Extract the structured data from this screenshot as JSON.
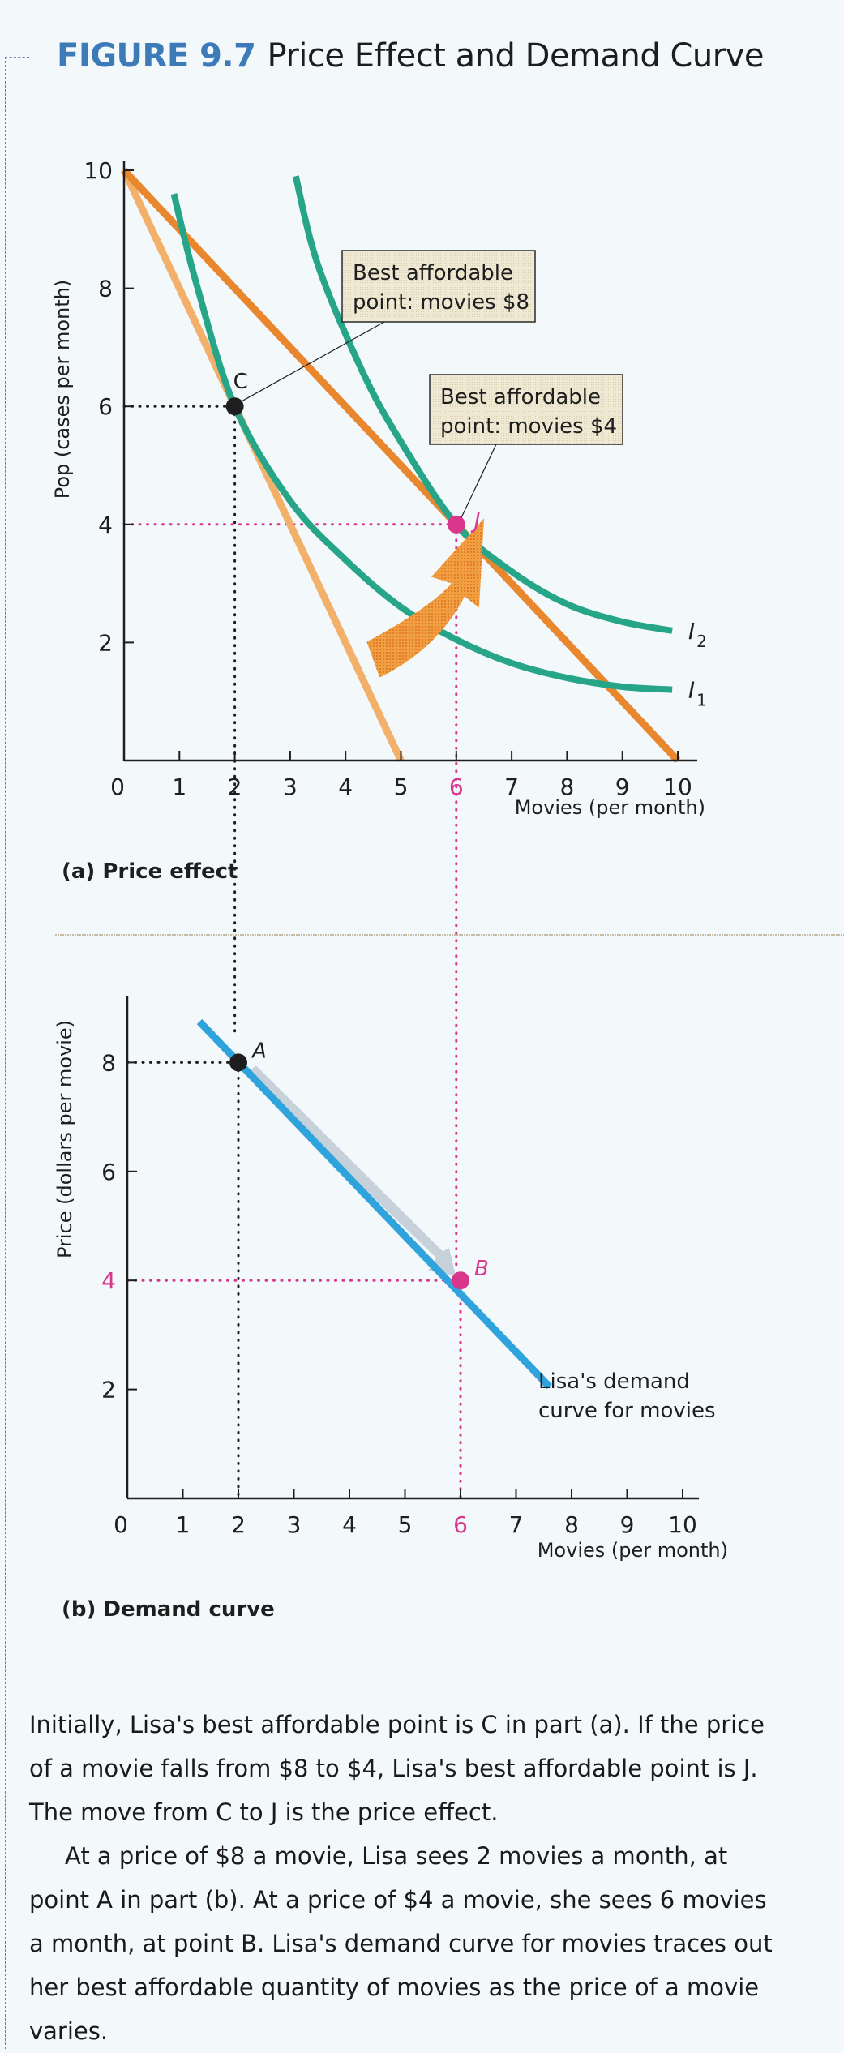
{
  "figure": {
    "number": "FIGURE 9.7",
    "title": "Price Effect and Demand Curve"
  },
  "colors": {
    "title_blue": "#3d7ab8",
    "budget_line_high_price": "#f2b06a",
    "budget_line_low_price": "#e8872e",
    "indifference_curve": "#27a589",
    "highlight_magenta": "#d9368c",
    "demand_curve": "#2fa3db",
    "arrow_orange": "#f0a040",
    "callout_bg": "#ece6cf"
  },
  "chart_data": [
    {
      "id": "price-effect",
      "type": "line",
      "panel_label": "(a)  Price effect",
      "xlabel": "Movies (per month)",
      "ylabel": "Pop (cases per month)",
      "xlim": [
        0,
        10
      ],
      "ylim": [
        0,
        10
      ],
      "x_ticks": [
        "0",
        "1",
        "2",
        "3",
        "4",
        "5",
        "6",
        "7",
        "8",
        "9",
        "10"
      ],
      "y_ticks": [
        "2",
        "4",
        "6",
        "8",
        "10"
      ],
      "highlight_x_tick": "6",
      "grid": false,
      "series": [
        {
          "name": "Budget line (movies $8)",
          "kind": "budget",
          "points": [
            [
              0,
              10
            ],
            [
              5,
              0
            ]
          ]
        },
        {
          "name": "Budget line (movies $4)",
          "kind": "budget",
          "points": [
            [
              0,
              10
            ],
            [
              10,
              0
            ]
          ]
        },
        {
          "name": "I1",
          "kind": "indifference",
          "points": [
            [
              0.9,
              9.6
            ],
            [
              1.3,
              8.1
            ],
            [
              2,
              6
            ],
            [
              3,
              4.4
            ],
            [
              4,
              3.4
            ],
            [
              5,
              2.6
            ],
            [
              6,
              2.05
            ],
            [
              7,
              1.65
            ],
            [
              8,
              1.4
            ],
            [
              9,
              1.25
            ],
            [
              9.9,
              1.2
            ]
          ]
        },
        {
          "name": "I2",
          "kind": "indifference",
          "points": [
            [
              3.1,
              9.9
            ],
            [
              3.5,
              8.4
            ],
            [
              4.3,
              6.6
            ],
            [
              5,
              5.4
            ],
            [
              6,
              4
            ],
            [
              7,
              3.2
            ],
            [
              8,
              2.65
            ],
            [
              9,
              2.35
            ],
            [
              9.9,
              2.2
            ]
          ]
        }
      ],
      "points": [
        {
          "label": "C",
          "x": 2,
          "y": 6,
          "color": "#1e1e1e"
        },
        {
          "label": "J",
          "x": 6,
          "y": 4,
          "color": "#d9368c"
        }
      ],
      "curve_labels": [
        {
          "text": "I",
          "sub": "2",
          "x": 10.1,
          "y": 2.2
        },
        {
          "text": "I",
          "sub": "1",
          "x": 10.1,
          "y": 1.2
        }
      ],
      "annotations": [
        {
          "line1": "Best affordable",
          "line2": "point: movies $8",
          "target": "C"
        },
        {
          "line1": "Best affordable",
          "line2": "point: movies $4",
          "target": "J"
        }
      ],
      "arrow": {
        "from": [
          4.5,
          1.9
        ],
        "to": [
          6.5,
          4.1
        ],
        "meaning": "price effect C to J"
      }
    },
    {
      "id": "demand-curve",
      "type": "line",
      "panel_label": "(b)  Demand curve",
      "xlabel": "Movies (per month)",
      "ylabel": "Price (dollars per movie)",
      "xlim": [
        0,
        10
      ],
      "ylim": [
        0,
        9
      ],
      "x_ticks": [
        "0",
        "1",
        "2",
        "3",
        "4",
        "5",
        "6",
        "7",
        "8",
        "9",
        "10"
      ],
      "y_ticks": [
        "2",
        "4",
        "6",
        "8"
      ],
      "highlight_x_tick": "6",
      "highlight_y_tick": "4",
      "grid": false,
      "series": [
        {
          "name": "Lisa's demand curve for movies",
          "kind": "demand",
          "points": [
            [
              1.3,
              8.75
            ],
            [
              7.6,
              2.05
            ]
          ]
        }
      ],
      "points": [
        {
          "label": "A",
          "x": 2,
          "y": 8,
          "color": "#1e1e1e"
        },
        {
          "label": "B",
          "x": 6,
          "y": 4,
          "color": "#d9368c"
        }
      ],
      "curve_label": {
        "line1": "Lisa's demand",
        "line2": "curve for movies"
      }
    }
  ],
  "caption": {
    "paragraph1": "Initially, Lisa's best affordable point is C in part (a). If the price of a movie falls from $8 to $4, Lisa's best affordable point is J. The move from C to J is the price effect.",
    "paragraph2": "At a price of $8 a movie, Lisa sees 2 movies a month, at point A in part (b). At a price of $4 a movie, she sees 6 movies a month, at point B. Lisa's demand curve for movies traces out her best affordable quantity of movies as the price of a movie varies."
  }
}
